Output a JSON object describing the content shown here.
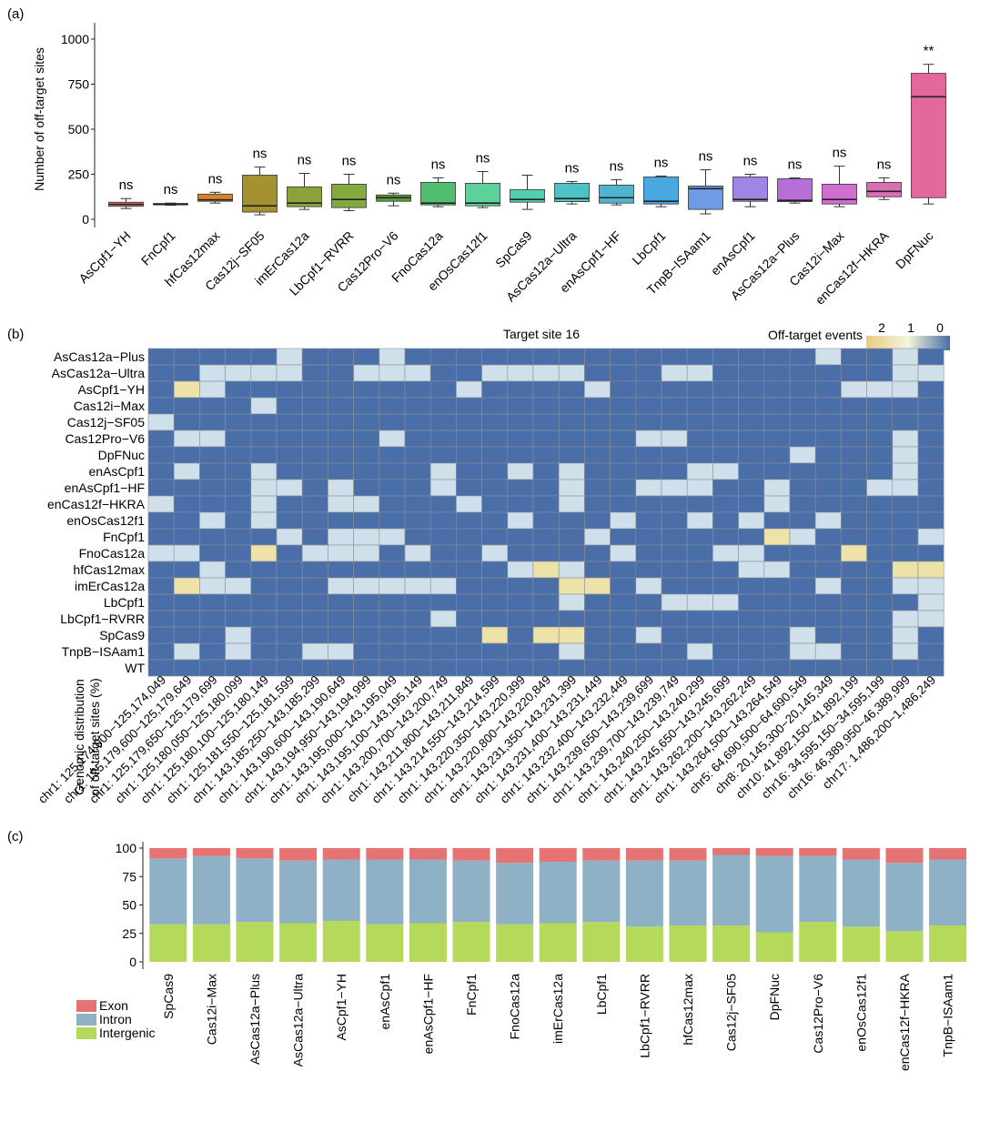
{
  "chart_data": [
    {
      "type": "box",
      "panel_label": "(a)",
      "ylabel": "Number of off-target sites",
      "ylim": [
        0,
        1000
      ],
      "yticks": [
        0,
        250,
        500,
        750,
        1000
      ],
      "series": [
        {
          "name": "AsCpf1−YH",
          "color": "#e07474",
          "min": 60,
          "q1": 72,
          "median": 83,
          "q3": 95,
          "max": 115,
          "sig": "ns"
        },
        {
          "name": "FnCpf1",
          "color": "#9a9a9a",
          "min": 78,
          "q1": 80,
          "median": 84,
          "q3": 88,
          "max": 90,
          "sig": "ns"
        },
        {
          "name": "hfCas12max",
          "color": "#d3822e",
          "min": 90,
          "q1": 100,
          "median": 108,
          "q3": 140,
          "max": 150,
          "sig": "ns"
        },
        {
          "name": "Cas12j−SF05",
          "color": "#a39132",
          "min": 25,
          "q1": 40,
          "median": 75,
          "q3": 245,
          "max": 290,
          "sig": "ns"
        },
        {
          "name": "imErCas12a",
          "color": "#8aa33a",
          "min": 55,
          "q1": 70,
          "median": 90,
          "q3": 180,
          "max": 255,
          "sig": "ns"
        },
        {
          "name": "LbCpf1−RVRR",
          "color": "#84aa3e",
          "min": 48,
          "q1": 65,
          "median": 110,
          "q3": 195,
          "max": 250,
          "sig": "ns"
        },
        {
          "name": "Cas12Pro−V6",
          "color": "#5c9a3c",
          "min": 75,
          "q1": 100,
          "median": 120,
          "q3": 135,
          "max": 145,
          "sig": "ns"
        },
        {
          "name": "FnoCas12a",
          "color": "#4fbf6e",
          "min": 70,
          "q1": 80,
          "median": 90,
          "q3": 205,
          "max": 230,
          "sig": "ns"
        },
        {
          "name": "enOsCas12f1",
          "color": "#5ed09a",
          "min": 65,
          "q1": 75,
          "median": 90,
          "q3": 200,
          "max": 265,
          "sig": "ns"
        },
        {
          "name": "SpCas9",
          "color": "#52cfb0",
          "min": 55,
          "q1": 95,
          "median": 110,
          "q3": 165,
          "max": 245,
          "sig": ""
        },
        {
          "name": "AsCas12a−Ultra",
          "color": "#4fc2c3",
          "min": 85,
          "q1": 98,
          "median": 115,
          "q3": 200,
          "max": 210,
          "sig": "ns"
        },
        {
          "name": "enAsCpf1−HF",
          "color": "#4db5d0",
          "min": 80,
          "q1": 90,
          "median": 120,
          "q3": 190,
          "max": 220,
          "sig": "ns"
        },
        {
          "name": "LbCpf1",
          "color": "#49a8e0",
          "min": 70,
          "q1": 85,
          "median": 100,
          "q3": 235,
          "max": 240,
          "sig": "ns"
        },
        {
          "name": "TnpB−ISAam1",
          "color": "#6f9be6",
          "min": 30,
          "q1": 55,
          "median": 170,
          "q3": 185,
          "max": 275,
          "sig": "ns"
        },
        {
          "name": "enAsCpf1",
          "color": "#9d86e6",
          "min": 70,
          "q1": 100,
          "median": 110,
          "q3": 235,
          "max": 250,
          "sig": "ns"
        },
        {
          "name": "AsCas12a−Plus",
          "color": "#b66ed9",
          "min": 90,
          "q1": 98,
          "median": 105,
          "q3": 225,
          "max": 230,
          "sig": "ns"
        },
        {
          "name": "Cas12i−Max",
          "color": "#d26ed0",
          "min": 70,
          "q1": 85,
          "median": 110,
          "q3": 195,
          "max": 295,
          "sig": "ns"
        },
        {
          "name": "enCas12f−HKRA",
          "color": "#dc6eb4",
          "min": 110,
          "q1": 125,
          "median": 155,
          "q3": 205,
          "max": 230,
          "sig": "ns"
        },
        {
          "name": "DpFNuc",
          "color": "#e4689a",
          "min": 85,
          "q1": 120,
          "median": 680,
          "q3": 810,
          "max": 860,
          "sig": "**"
        }
      ]
    },
    {
      "type": "heatmap",
      "panel_label": "(b)",
      "title": "Target site 16",
      "legend_title": "Off-target events",
      "legend_ticks": [
        "2",
        "1",
        "0"
      ],
      "rows": [
        "AsCas12a−Plus",
        "AsCas12a−Ultra",
        "AsCpf1−YH",
        "Cas12i−Max",
        "Cas12j−SF05",
        "Cas12Pro−V6",
        "DpFNuc",
        "enAsCpf1",
        "enAsCpf1−HF",
        "enCas12f−HKRA",
        "enOsCas12f1",
        "FnCpf1",
        "FnoCas12a",
        "hfCas12max",
        "imErCas12a",
        "LbCpf1",
        "LbCpf1−RVRR",
        "SpCas9",
        "TnpB−ISAam1",
        "WT"
      ],
      "columns": [
        "chr1: 125,174,000−125,174,049",
        "chr1: 125,179,600−125,179,649",
        "chr1: 125,179,650−125,179,699",
        "chr1: 125,180,050−125,180,099",
        "chr1: 125,180,100−125,180,149",
        "chr1: 125,181,550−125,181,599",
        "chr1: 143,185,250−143,185,299",
        "chr1: 143,190,600−143,190,649",
        "chr1: 143,194,950−143,194,999",
        "chr1: 143,195,000−143,195,049",
        "chr1: 143,195,100−143,195,149",
        "chr1: 143,200,700−143,200,749",
        "chr1: 143,211,800−143,211,849",
        "chr1: 143,214,550−143,214,599",
        "chr1: 143,220,350−143,220,399",
        "chr1: 143,220,800−143,220,849",
        "chr1: 143,231,350−143,231,399",
        "chr1: 143,231,400−143,231,449",
        "chr1: 143,232,400−143,232,449",
        "chr1: 143,239,650−143,239,699",
        "chr1: 143,239,700−143,239,749",
        "chr1: 143,240,250−143,240,299",
        "chr1: 143,245,650−143,245,699",
        "chr1: 143,262,200−143,262,249",
        "chr1: 143,264,500−143,264,549",
        "chr5: 64,690,500−64,690,549",
        "chr8: 20,145,300−20,145,349",
        "chr10: 41,892,150−41,892,199",
        "chr16: 34,595,150−34,595,199",
        "chr16: 46,389,950−46,389,999",
        "chr17: 1,486,200−1,486,249"
      ],
      "values": [
        [
          0,
          0,
          0,
          0,
          0,
          1,
          0,
          0,
          0,
          1,
          0,
          0,
          0,
          0,
          0,
          0,
          0,
          0,
          0,
          0,
          0,
          0,
          0,
          0,
          0,
          0,
          1,
          0,
          0,
          1,
          0
        ],
        [
          0,
          0,
          1,
          1,
          1,
          1,
          0,
          0,
          1,
          1,
          1,
          0,
          0,
          1,
          1,
          1,
          1,
          0,
          0,
          0,
          1,
          1,
          0,
          0,
          0,
          0,
          0,
          0,
          0,
          1,
          1
        ],
        [
          0,
          2,
          1,
          0,
          0,
          0,
          0,
          0,
          0,
          0,
          0,
          0,
          1,
          0,
          0,
          0,
          0,
          1,
          0,
          0,
          0,
          0,
          0,
          0,
          0,
          0,
          0,
          1,
          1,
          1,
          0
        ],
        [
          0,
          0,
          0,
          0,
          1,
          0,
          0,
          0,
          0,
          0,
          0,
          0,
          0,
          0,
          0,
          0,
          0,
          0,
          0,
          0,
          0,
          0,
          0,
          0,
          0,
          0,
          0,
          0,
          0,
          0,
          0
        ],
        [
          1,
          0,
          0,
          0,
          0,
          0,
          0,
          0,
          0,
          0,
          0,
          0,
          0,
          0,
          0,
          0,
          0,
          0,
          0,
          0,
          0,
          0,
          0,
          0,
          0,
          0,
          0,
          0,
          0,
          0,
          0
        ],
        [
          0,
          1,
          1,
          0,
          0,
          0,
          0,
          0,
          0,
          1,
          0,
          0,
          0,
          0,
          0,
          0,
          0,
          0,
          0,
          1,
          1,
          0,
          0,
          0,
          0,
          0,
          0,
          0,
          0,
          1,
          0
        ],
        [
          0,
          0,
          0,
          0,
          0,
          0,
          0,
          0,
          0,
          0,
          0,
          0,
          0,
          0,
          0,
          0,
          0,
          0,
          0,
          0,
          0,
          0,
          0,
          0,
          0,
          1,
          0,
          0,
          0,
          1,
          0
        ],
        [
          0,
          1,
          0,
          0,
          1,
          0,
          0,
          0,
          0,
          0,
          0,
          1,
          0,
          0,
          1,
          0,
          1,
          0,
          0,
          0,
          0,
          1,
          1,
          0,
          0,
          0,
          0,
          0,
          0,
          1,
          0
        ],
        [
          0,
          0,
          0,
          0,
          1,
          1,
          0,
          1,
          0,
          0,
          0,
          1,
          0,
          0,
          0,
          0,
          1,
          0,
          0,
          1,
          1,
          1,
          0,
          0,
          1,
          0,
          0,
          0,
          1,
          1,
          0
        ],
        [
          1,
          0,
          0,
          0,
          1,
          0,
          0,
          1,
          1,
          0,
          0,
          0,
          1,
          0,
          0,
          0,
          1,
          0,
          0,
          0,
          0,
          0,
          0,
          0,
          1,
          0,
          0,
          0,
          0,
          0,
          0
        ],
        [
          0,
          0,
          1,
          0,
          1,
          0,
          0,
          0,
          0,
          0,
          0,
          0,
          0,
          0,
          1,
          0,
          0,
          0,
          1,
          0,
          0,
          1,
          0,
          1,
          0,
          0,
          1,
          0,
          0,
          0,
          0
        ],
        [
          0,
          0,
          0,
          0,
          0,
          1,
          0,
          1,
          1,
          1,
          0,
          0,
          0,
          0,
          0,
          0,
          0,
          1,
          0,
          0,
          0,
          0,
          0,
          0,
          2,
          1,
          0,
          0,
          0,
          0,
          1
        ],
        [
          1,
          1,
          0,
          0,
          2,
          0,
          1,
          1,
          1,
          0,
          1,
          0,
          0,
          1,
          0,
          0,
          0,
          0,
          1,
          0,
          0,
          0,
          1,
          1,
          0,
          0,
          0,
          2,
          0,
          0,
          0
        ],
        [
          0,
          0,
          1,
          0,
          0,
          0,
          0,
          0,
          0,
          0,
          0,
          0,
          0,
          0,
          1,
          2,
          1,
          0,
          0,
          0,
          0,
          0,
          0,
          1,
          1,
          0,
          0,
          0,
          0,
          2,
          2
        ],
        [
          0,
          2,
          1,
          1,
          0,
          0,
          0,
          1,
          1,
          1,
          1,
          1,
          0,
          0,
          0,
          0,
          2,
          2,
          0,
          1,
          0,
          0,
          0,
          0,
          0,
          0,
          1,
          0,
          0,
          1,
          1
        ],
        [
          0,
          0,
          0,
          0,
          0,
          0,
          0,
          0,
          0,
          0,
          0,
          0,
          0,
          0,
          0,
          0,
          1,
          0,
          0,
          0,
          1,
          1,
          1,
          0,
          0,
          0,
          0,
          0,
          0,
          0,
          1
        ],
        [
          0,
          0,
          0,
          0,
          0,
          0,
          0,
          0,
          0,
          0,
          0,
          1,
          0,
          0,
          0,
          0,
          0,
          0,
          0,
          0,
          0,
          0,
          0,
          0,
          0,
          0,
          0,
          0,
          0,
          1,
          1
        ],
        [
          0,
          0,
          0,
          1,
          0,
          0,
          0,
          0,
          0,
          0,
          0,
          0,
          0,
          2,
          0,
          2,
          2,
          0,
          0,
          1,
          0,
          0,
          0,
          0,
          0,
          1,
          0,
          0,
          0,
          1,
          0
        ],
        [
          0,
          1,
          0,
          1,
          0,
          0,
          1,
          1,
          0,
          0,
          0,
          0,
          0,
          0,
          0,
          0,
          1,
          0,
          0,
          0,
          0,
          1,
          0,
          0,
          0,
          1,
          1,
          0,
          0,
          1,
          0
        ],
        [
          0,
          0,
          0,
          0,
          0,
          0,
          0,
          0,
          0,
          0,
          0,
          0,
          0,
          0,
          0,
          0,
          0,
          0,
          0,
          0,
          0,
          0,
          0,
          0,
          0,
          0,
          0,
          0,
          0,
          0,
          0
        ]
      ]
    },
    {
      "type": "bar",
      "stacked": true,
      "panel_label": "(c)",
      "ylabel_lines": [
        "Genomic distribution",
        "of off-target sites (%)"
      ],
      "ylim": [
        0,
        100
      ],
      "yticks": [
        0,
        25,
        50,
        75,
        100
      ],
      "categories": [
        "SpCas9",
        "Cas12i−Max",
        "AsCas12a−Plus",
        "AsCas12a−Ultra",
        "AsCpf1−YH",
        "enAsCpf1",
        "enAsCpf1−HF",
        "FnCpf1",
        "FnoCas12a",
        "imErCas12a",
        "LbCpf1",
        "LbCpf1−RVRR",
        "hfCas12max",
        "Cas12j−SF05",
        "DpFNuc",
        "Cas12Pro−V6",
        "enOsCas12f1",
        "enCas12f−HKRA",
        "TnpB−ISAam1"
      ],
      "series": [
        {
          "name": "Intergenic",
          "color": "#b5d95a",
          "values": [
            33,
            33,
            35,
            34,
            36,
            33,
            34,
            35,
            33,
            34,
            35,
            31,
            32,
            32,
            26,
            35,
            31,
            27,
            32
          ]
        },
        {
          "name": "Intron",
          "color": "#8fb1c6",
          "values": [
            58,
            60,
            56,
            55,
            54,
            57,
            56,
            54,
            54,
            54,
            54,
            58,
            57,
            62,
            67,
            58,
            59,
            60,
            58
          ]
        },
        {
          "name": "Exon",
          "color": "#e57373",
          "values": [
            9,
            7,
            9,
            11,
            10,
            10,
            10,
            11,
            13,
            12,
            11,
            11,
            11,
            6,
            7,
            7,
            10,
            13,
            10
          ]
        }
      ],
      "legend_order": [
        "Exon",
        "Intron",
        "Intergenic"
      ]
    }
  ]
}
